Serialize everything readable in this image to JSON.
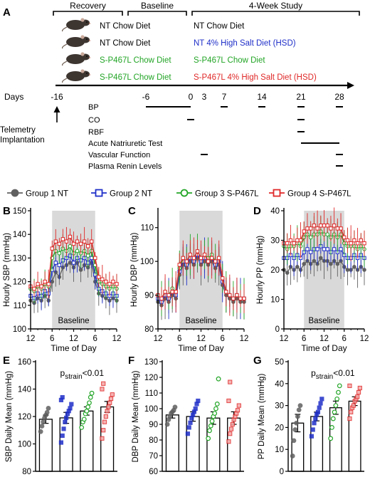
{
  "colors": {
    "g1": "#606060",
    "g2": "#1f2fc8",
    "g3": "#22a526",
    "g4": "#e02828",
    "baseline_shade": "#d9d9d9",
    "text": "#000000"
  },
  "icons": [
    "mouse-icon"
  ],
  "panelA": {
    "label": "A",
    "phases": [
      "Recovery",
      "Baseline",
      "4-Week Study"
    ],
    "rows": [
      {
        "left": "NT Chow Diet",
        "right": "NT Chow Diet",
        "left_color": "#000000",
        "right_color": "#000000"
      },
      {
        "left": "NT Chow Diet",
        "right": "NT 4% High Salt Diet (HSD)",
        "left_color": "#000000",
        "right_color": "#1f2fc8"
      },
      {
        "left": "S-P467L Chow Diet",
        "right": "S-P467L Chow Diet",
        "left_color": "#22a526",
        "right_color": "#22a526"
      },
      {
        "left": "S-P467L Chow Diet",
        "right": "S-P467L 4% High Salt Diet (HSD)",
        "left_color": "#22a526",
        "right_color": "#e02828"
      }
    ],
    "days_label": "Days",
    "day_ticks": [
      "-16",
      "-6",
      "0",
      "3",
      "7",
      "14",
      "21",
      "28"
    ],
    "telemetry_label": [
      "Telemetry",
      "Implantation"
    ],
    "measurements": [
      {
        "label": "BP",
        "spans": [
          [
            -6,
            0
          ],
          [
            7,
            7
          ],
          [
            14,
            14
          ],
          [
            21,
            21
          ],
          [
            28,
            28
          ]
        ]
      },
      {
        "label": "CO",
        "spans": [
          [
            0,
            0
          ],
          [
            21,
            21
          ]
        ]
      },
      {
        "label": "RBF",
        "spans": [
          [
            21,
            21
          ]
        ]
      },
      {
        "label": "Acute Natriuretic Test",
        "spans": [
          [
            21,
            28
          ]
        ]
      },
      {
        "label": "Vascular Function",
        "spans": [
          [
            3,
            3
          ],
          [
            28,
            28
          ]
        ]
      },
      {
        "label": "Plasma Renin Levels",
        "spans": [
          [
            28,
            28
          ]
        ]
      }
    ]
  },
  "legend": [
    {
      "label": "Group 1 NT",
      "color": "#606060",
      "marker": "circle"
    },
    {
      "label": "Group 2 NT",
      "color": "#1f2fc8",
      "marker": "square"
    },
    {
      "label": "Group 3 S-P467L",
      "color": "#22a526",
      "marker": "circle"
    },
    {
      "label": "Group 4 S-P467L",
      "color": "#e02828",
      "marker": "square"
    }
  ],
  "chart_data": [
    {
      "panel": "B",
      "type": "line",
      "ylabel": "Hourly SBP (mmHg)",
      "xlabel": "Time of Day",
      "ylim": [
        100,
        150
      ],
      "yticks": [
        100,
        110,
        120,
        130,
        140,
        150
      ],
      "x": [
        12,
        13,
        14,
        15,
        16,
        17,
        18,
        19,
        20,
        21,
        22,
        23,
        0,
        1,
        2,
        3,
        4,
        5,
        6,
        7,
        8,
        9,
        10,
        11,
        12
      ],
      "xtick_labels": [
        "12",
        "6",
        "12",
        "6",
        "12"
      ],
      "shade_label": "Baseline",
      "series": [
        {
          "name": "Group 1 NT",
          "values": [
            112,
            111,
            113,
            112,
            114,
            112,
            120,
            124,
            122,
            126,
            127,
            128,
            126,
            128,
            125,
            127,
            126,
            128,
            120,
            115,
            114,
            113,
            112,
            113,
            112
          ]
        },
        {
          "name": "Group 2 NT",
          "values": [
            114,
            113,
            115,
            114,
            116,
            115,
            125,
            128,
            127,
            129,
            130,
            131,
            128,
            130,
            129,
            130,
            128,
            130,
            123,
            117,
            116,
            115,
            114,
            115,
            114
          ]
        },
        {
          "name": "Group 3 S-P467L",
          "values": [
            117,
            116,
            118,
            117,
            119,
            118,
            130,
            133,
            132,
            134,
            133,
            135,
            132,
            133,
            132,
            133,
            131,
            133,
            127,
            120,
            119,
            118,
            117,
            118,
            117
          ]
        },
        {
          "name": "Group 4 S-P467L",
          "values": [
            118,
            117,
            119,
            118,
            120,
            119,
            134,
            137,
            136,
            138,
            137,
            139,
            136,
            137,
            136,
            137,
            135,
            137,
            130,
            122,
            121,
            120,
            119,
            120,
            119
          ]
        }
      ]
    },
    {
      "panel": "C",
      "type": "line",
      "ylabel": "Hourly DBP (mmHg)",
      "xlabel": "Time of Day",
      "ylim": [
        80,
        115
      ],
      "yticks": [
        80,
        90,
        100,
        110
      ],
      "x": [
        12,
        13,
        14,
        15,
        16,
        17,
        18,
        19,
        20,
        21,
        22,
        23,
        0,
        1,
        2,
        3,
        4,
        5,
        6,
        7,
        8,
        9,
        10,
        11,
        12
      ],
      "xtick_labels": [
        "12",
        "6",
        "12",
        "6",
        "12"
      ],
      "shade_label": "Baseline",
      "series": [
        {
          "name": "Group 1 NT",
          "values": [
            88,
            87,
            89,
            88,
            90,
            89,
            96,
            99,
            98,
            100,
            99,
            101,
            99,
            100,
            99,
            100,
            98,
            99,
            93,
            90,
            89,
            88,
            89,
            88,
            88
          ]
        },
        {
          "name": "Group 2 NT",
          "values": [
            89,
            88,
            90,
            89,
            91,
            90,
            97,
            100,
            99,
            101,
            100,
            102,
            100,
            101,
            100,
            101,
            99,
            100,
            94,
            91,
            90,
            89,
            90,
            89,
            89
          ]
        },
        {
          "name": "Group 3 S-P467L",
          "values": [
            90,
            89,
            91,
            90,
            92,
            91,
            98,
            101,
            100,
            102,
            101,
            103,
            101,
            102,
            101,
            102,
            100,
            101,
            95,
            91,
            90,
            89,
            90,
            89,
            89
          ]
        },
        {
          "name": "Group 4 S-P467L",
          "values": [
            90,
            89,
            91,
            90,
            91,
            91,
            99,
            101,
            100,
            102,
            101,
            103,
            101,
            102,
            100,
            101,
            100,
            101,
            95,
            91,
            90,
            89,
            90,
            89,
            89
          ]
        }
      ]
    },
    {
      "panel": "D",
      "type": "line",
      "ylabel": "Hourly PP (mmHg)",
      "xlabel": "Time of Day",
      "ylim": [
        0,
        40
      ],
      "yticks": [
        0,
        10,
        20,
        30,
        40
      ],
      "x": [
        12,
        13,
        14,
        15,
        16,
        17,
        18,
        19,
        20,
        21,
        22,
        23,
        0,
        1,
        2,
        3,
        4,
        5,
        6,
        7,
        8,
        9,
        10,
        11,
        12
      ],
      "xtick_labels": [
        "12",
        "6",
        "12",
        "6",
        "12"
      ],
      "shade_label": "Baseline",
      "series": [
        {
          "name": "Group 1 NT",
          "values": [
            20,
            19,
            21,
            20,
            21,
            20,
            22,
            23,
            22,
            23,
            22,
            24,
            23,
            23,
            22,
            23,
            22,
            23,
            21,
            20,
            20,
            21,
            20,
            21,
            20
          ]
        },
        {
          "name": "Group 2 NT",
          "values": [
            24,
            24,
            25,
            24,
            25,
            24,
            26,
            27,
            26,
            27,
            27,
            28,
            27,
            27,
            26,
            27,
            26,
            27,
            25,
            24,
            24,
            25,
            24,
            25,
            24
          ]
        },
        {
          "name": "Group 3 S-P467L",
          "values": [
            28,
            27,
            28,
            28,
            29,
            28,
            31,
            32,
            31,
            32,
            32,
            33,
            32,
            32,
            31,
            32,
            31,
            32,
            29,
            28,
            28,
            28,
            27,
            28,
            27
          ]
        },
        {
          "name": "Group 4 S-P467L",
          "values": [
            29,
            29,
            30,
            29,
            30,
            30,
            33,
            34,
            34,
            35,
            34,
            35,
            35,
            35,
            34,
            35,
            34,
            34,
            31,
            30,
            29,
            30,
            29,
            30,
            29
          ]
        }
      ]
    },
    {
      "panel": "E",
      "type": "bar",
      "ylabel": "SBP Daily Mean (mmHg)",
      "ylim": [
        80,
        160
      ],
      "yticks": [
        80,
        100,
        120,
        140,
        160
      ],
      "annotation": "strain<0.01",
      "categories": [
        "Group 1 NT",
        "Group 2 NT",
        "Group 3 S-P467L",
        "Group 4 S-P467L"
      ],
      "values": [
        118,
        119,
        124,
        127
      ],
      "errors": [
        3,
        4,
        3,
        4
      ],
      "points": [
        [
          109,
          113,
          116,
          119,
          121,
          123,
          126
        ],
        [
          101,
          106,
          111,
          116,
          119,
          122,
          124,
          126,
          129,
          132,
          134
        ],
        [
          112,
          116,
          118,
          122,
          124,
          127,
          130,
          134,
          137
        ],
        [
          104,
          110,
          116,
          120,
          124,
          127,
          130,
          133,
          136,
          140,
          144
        ]
      ]
    },
    {
      "panel": "F",
      "type": "bar",
      "ylabel": "DBP Daily Mean (mmHg)",
      "ylim": [
        60,
        130
      ],
      "yticks": [
        60,
        70,
        80,
        90,
        100,
        110,
        120,
        130
      ],
      "categories": [
        "Group 1 NT",
        "Group 2 NT",
        "Group 3 S-P467L",
        "Group 4 S-P467L"
      ],
      "values": [
        96,
        95,
        94,
        94
      ],
      "errors": [
        2,
        3,
        4,
        4
      ],
      "points": [
        [
          90,
          93,
          95,
          97,
          98,
          99,
          101
        ],
        [
          84,
          88,
          91,
          94,
          96,
          98,
          100,
          103,
          105
        ],
        [
          81,
          86,
          89,
          92,
          95,
          97,
          100,
          103,
          119
        ],
        [
          79,
          84,
          87,
          90,
          93,
          95,
          97,
          99,
          102,
          105,
          117
        ]
      ]
    },
    {
      "panel": "G",
      "type": "bar",
      "ylabel": "PP Daily Mean (mmHg)",
      "ylim": [
        0,
        50
      ],
      "yticks": [
        0,
        10,
        20,
        30,
        40,
        50
      ],
      "annotation": "strain<0.01",
      "categories": [
        "Group 1 NT",
        "Group 2 NT",
        "Group 3 S-P467L",
        "Group 4 S-P467L"
      ],
      "values": [
        22,
        25,
        29,
        32
      ],
      "errors": [
        4,
        2,
        3,
        2
      ],
      "points": [
        [
          7,
          14,
          19,
          22,
          25,
          28,
          30
        ],
        [
          16,
          19,
          22,
          24,
          26,
          27,
          29,
          31,
          33
        ],
        [
          15,
          20,
          24,
          27,
          30,
          33,
          36,
          39
        ],
        [
          24,
          27,
          29,
          30,
          32,
          33,
          34,
          36,
          38,
          39
        ]
      ]
    }
  ]
}
